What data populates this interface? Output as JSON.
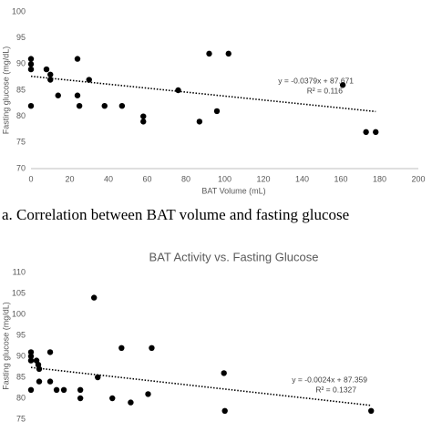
{
  "chart_data": [
    {
      "type": "scatter",
      "x_label": "BAT Volume (mL)",
      "y_label": "Fasting glucose (mg/dL)",
      "caption": "a. Correlation between BAT volume and fasting glucose",
      "x": [
        0,
        0,
        0,
        0,
        8,
        10,
        10,
        14,
        24,
        24,
        25,
        30,
        38,
        47,
        58,
        58,
        76,
        87,
        92,
        96,
        102,
        161,
        173,
        178
      ],
      "values": [
        91,
        90,
        89,
        82,
        89,
        88,
        87,
        84,
        91,
        84,
        82,
        87,
        82,
        82,
        80,
        79,
        85,
        79,
        92,
        81,
        92,
        86,
        77,
        77
      ],
      "color": "#000000",
      "xlim": [
        0,
        200
      ],
      "xticks": [
        0,
        20,
        40,
        60,
        80,
        100,
        120,
        140,
        160,
        180,
        200
      ],
      "ylim": [
        70,
        100
      ],
      "yticks": [
        70,
        75,
        80,
        85,
        90,
        95,
        100
      ],
      "trendline": {
        "slope": -0.0379,
        "intercept": 87.671,
        "label": "y = -0.0379x + 87.671",
        "r2_label": "R² = 0.116"
      }
    },
    {
      "type": "scatter",
      "title": "BAT Activity vs. Fasting Glucose",
      "y_label": "Fasting glucose (mg/dL)",
      "x": [
        0,
        0,
        0,
        0,
        61,
        81,
        91,
        91,
        213,
        213,
        284,
        365,
        548,
        548,
        700,
        741,
        903,
        1005,
        1107,
        1300,
        1340,
        2142,
        2152,
        3776
      ],
      "values": [
        91,
        90,
        89,
        82,
        89,
        88,
        87,
        84,
        91,
        84,
        82,
        82,
        82,
        80,
        104,
        85,
        80,
        92,
        79,
        81,
        92,
        86,
        77,
        77
      ],
      "color": "#000000",
      "xlim": [
        0,
        4300
      ],
      "ylim": [
        75,
        110
      ],
      "yticks": [
        75,
        80,
        85,
        90,
        95,
        100,
        105,
        110
      ],
      "trendline": {
        "slope": -0.0024,
        "intercept": 87.359,
        "label": "y = -0.0024x + 87.359",
        "r2_label": "R² = 0.1327"
      }
    }
  ]
}
